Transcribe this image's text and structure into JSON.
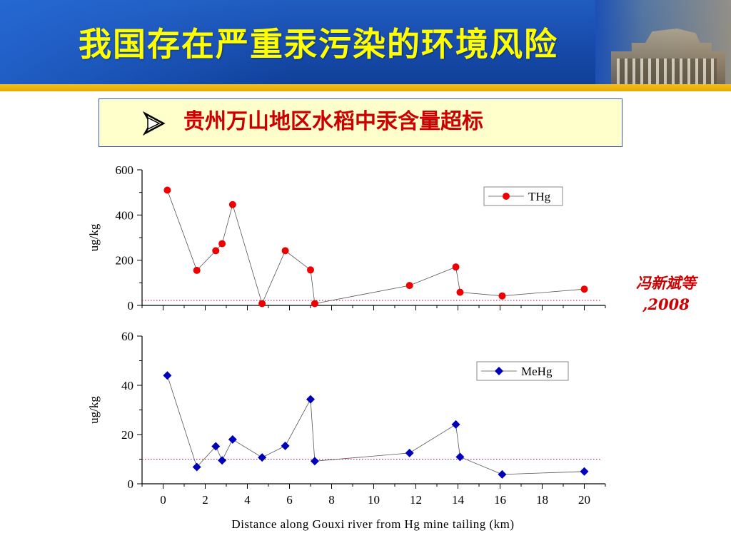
{
  "slide": {
    "title": "我国存在严重汞污染的环境风险",
    "subtitle": "贵州万山地区水稻中汞含量超标",
    "citation_author": "冯新斌等",
    "citation_year": ",2008"
  },
  "colors": {
    "title": "#ffff00",
    "subtitle": "#cc0000",
    "thg_marker": "#ee0000",
    "mehg_marker": "#0000bb",
    "reference_line": "#cc0066"
  },
  "chart_data": [
    {
      "type": "line",
      "series": [
        {
          "name": "THg",
          "marker": "circle",
          "x": [
            0.2,
            1.6,
            2.5,
            2.8,
            3.3,
            4.7,
            5.8,
            7.0,
            7.2,
            11.7,
            13.9,
            14.1,
            16.1,
            20.0
          ],
          "values": [
            510,
            155,
            242,
            273,
            446,
            8,
            242,
            157,
            8,
            88,
            170,
            58,
            42,
            72
          ]
        }
      ],
      "reference_line": 22,
      "ylabel": "ug/kg",
      "ylim": [
        0,
        600
      ],
      "yticks": [
        "0",
        "200",
        "400",
        "600"
      ],
      "xlim": [
        -1,
        21
      ],
      "legend": "top-right",
      "grid": false
    },
    {
      "type": "line",
      "series": [
        {
          "name": "MeHg",
          "marker": "diamond",
          "x": [
            0.2,
            1.6,
            2.5,
            2.8,
            3.3,
            4.7,
            5.8,
            7.0,
            7.2,
            11.7,
            13.9,
            14.1,
            16.1,
            20.0
          ],
          "values": [
            44,
            6.8,
            15.2,
            9.5,
            18,
            10.7,
            15.4,
            34.3,
            9.2,
            12.5,
            24.1,
            10.9,
            3.8,
            5
          ]
        }
      ],
      "reference_line": 10,
      "ylabel": "ug/kg",
      "ylim": [
        0,
        60
      ],
      "yticks": [
        "0",
        "20",
        "40",
        "60"
      ],
      "xlim": [
        -1,
        21
      ],
      "xticks": [
        "0",
        "2",
        "4",
        "6",
        "8",
        "10",
        "12",
        "14",
        "16",
        "18",
        "20"
      ],
      "xlabel": "Distance along Gouxi river from Hg mine tailing (km)",
      "legend": "top-right",
      "grid": false
    }
  ]
}
